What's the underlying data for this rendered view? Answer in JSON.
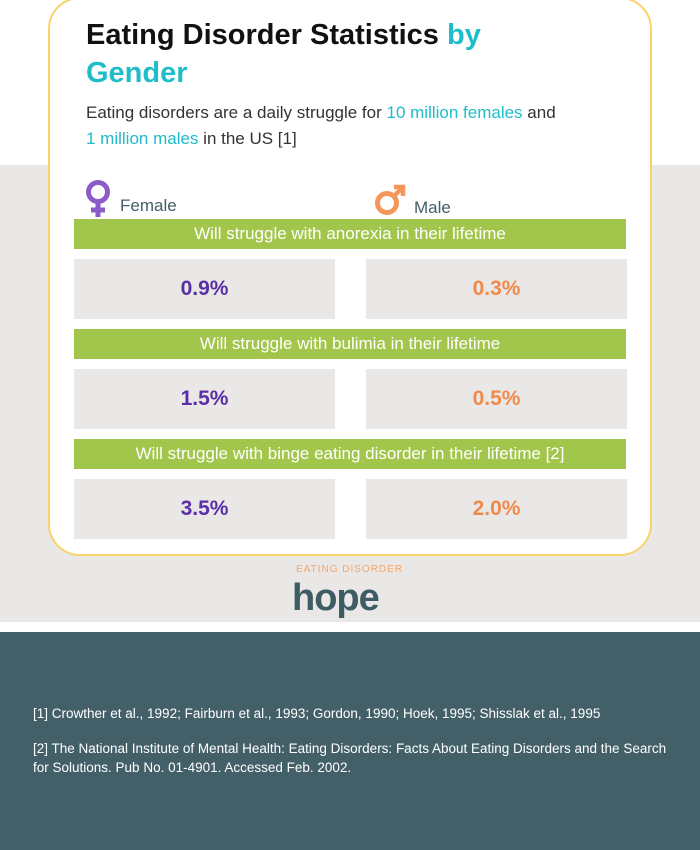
{
  "title": {
    "part1": "Eating Disorder Statistics ",
    "part2": "by Gender"
  },
  "subtitle": {
    "t1": "Eating disorders are a daily struggle for ",
    "h1": "10 million females",
    "t2": " and ",
    "h2": "1 million males",
    "t3": " in the US [1]"
  },
  "legend": {
    "female": "Female",
    "male": "Male",
    "female_color": "#8a5cc8",
    "male_color": "#f4965a"
  },
  "rows": [
    {
      "label": "Will struggle with anorexia in their lifetime",
      "female": "0.9%",
      "male": "0.3%"
    },
    {
      "label": "Will struggle with bulimia in their lifetime",
      "female": "1.5%",
      "male": "0.5%"
    },
    {
      "label": "Will struggle with binge eating disorder in their lifetime [2]",
      "female": "3.5%",
      "male": "2.0%"
    }
  ],
  "logo": {
    "top": "EATING DISORDER",
    "main": "hope"
  },
  "footnotes": [
    "[1] Crowther et al., 1992; Fairburn et al., 1993; Gordon, 1990; Hoek, 1995; Shisslak et al., 1995",
    "[2] The National Institute of Mental Health: Eating Disorders: Facts About Eating Disorders and the Search for Solutions. Pub No. 01-4901. Accessed Feb. 2002."
  ]
}
